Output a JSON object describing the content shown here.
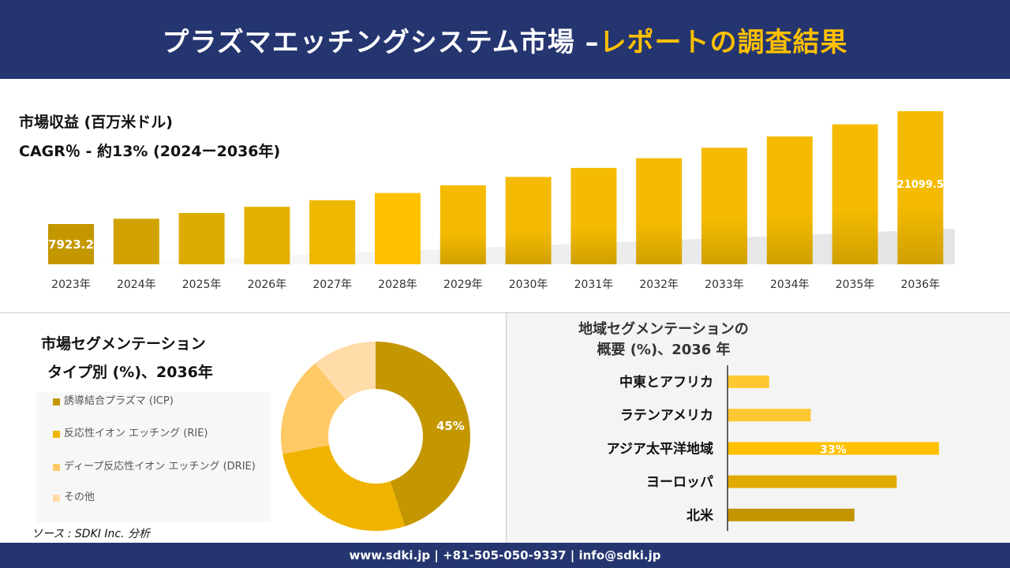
{
  "header": {
    "title_main": "プラズマエッチングシステム市場 –",
    "title_highlight": "レポートの調査結果",
    "highlight_color": "#ffc000",
    "bg_color": "#243570"
  },
  "revenue": {
    "title": "市場収益 (百万米ドル)",
    "cagr": "CAGR％ - 約13% (2024ー2036年)"
  },
  "segment": {
    "title_line1": "市場セグメンテーション",
    "title_line2": "タイプ別 (%)、2036年"
  },
  "region": {
    "title_line1": "地域セグメンテーションの",
    "title_line2": "概要 (%)、2036 年"
  },
  "source": "ソース : SDKI Inc. 分析",
  "footer": "www.sdki.jp | +81-505-050-9337 | info@sdki.jp",
  "chart_data": [
    {
      "type": "bar",
      "title": "市場収益 (百万米ドル)",
      "categories": [
        "2023年",
        "2024年",
        "2025年",
        "2026年",
        "2027年",
        "2028年",
        "2029年",
        "2030年",
        "2031年",
        "2032年",
        "2033年",
        "2034年",
        "2035年",
        "2036年"
      ],
      "values": [
        7923.2,
        8543,
        9212,
        9933,
        10711,
        11549,
        12453,
        13428,
        14479,
        15612,
        16834,
        18152,
        19573,
        21099.5
      ],
      "data_labels": {
        "0": "7923.2",
        "13": "21099.5"
      },
      "colors": [
        "#c49700",
        "#d2a300",
        "#dcaa00",
        "#e4b000",
        "#efb800",
        "#ffc000",
        "#f5bb00",
        "#f5bb00",
        "#f5bb00",
        "#f5bb00",
        "#f5bb00",
        "#f5bb00",
        "#f5bb00",
        "#f5bb00"
      ]
    },
    {
      "type": "pie",
      "title": "タイプ別 (%)、2036年",
      "categories": [
        "誘導結合プラズマ (ICP)",
        "反応性イオン エッチング (RIE)",
        "ディープ反応性イオン エッチング (DRIE)",
        "その他"
      ],
      "values": [
        45,
        27,
        17,
        11
      ],
      "data_labels": {
        "0": "45%"
      },
      "colors": [
        "#c49700",
        "#f0b400",
        "#ffc966",
        "#ffdca8"
      ]
    },
    {
      "type": "bar",
      "orientation": "horizontal",
      "title": "地域セグメンテーションの概要 (%)、2036 年",
      "categories": [
        "中東とアフリカ",
        "ラテンアメリカ",
        "アジア太平洋地域",
        "ヨーロッパ",
        "北米"
      ],
      "values": [
        6.5,
        13,
        33,
        26.4,
        19.8
      ],
      "data_labels": {
        "2": "33%"
      },
      "colors": [
        "#ffc832",
        "#ffc832",
        "#ffc000",
        "#e0aa00",
        "#c49400"
      ]
    }
  ]
}
